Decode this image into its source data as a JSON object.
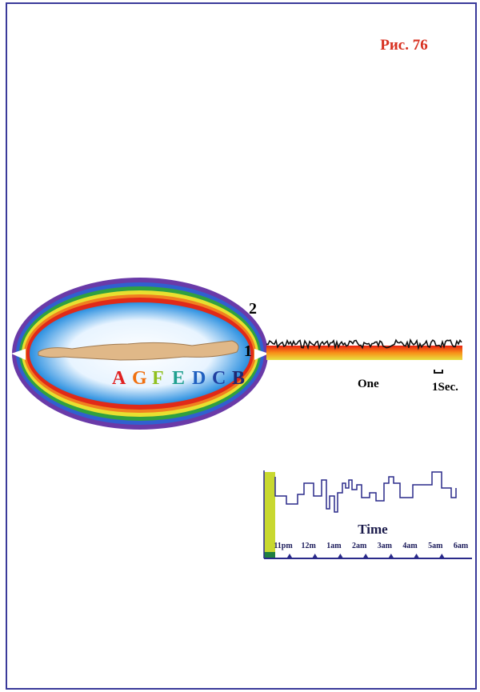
{
  "header": {
    "figure_label": "Рис. 76"
  },
  "field": {
    "layer_labels": [
      "2",
      "1"
    ],
    "letters": [
      "A",
      "G",
      "F",
      "E",
      "D",
      "C",
      "B"
    ]
  },
  "trace": {
    "caption": "One",
    "scale": "1Sec."
  },
  "timeline": {
    "title": "Time",
    "hours": [
      "11pm",
      "12m",
      "1am",
      "2am",
      "3am",
      "4am",
      "5am",
      "6am"
    ]
  }
}
